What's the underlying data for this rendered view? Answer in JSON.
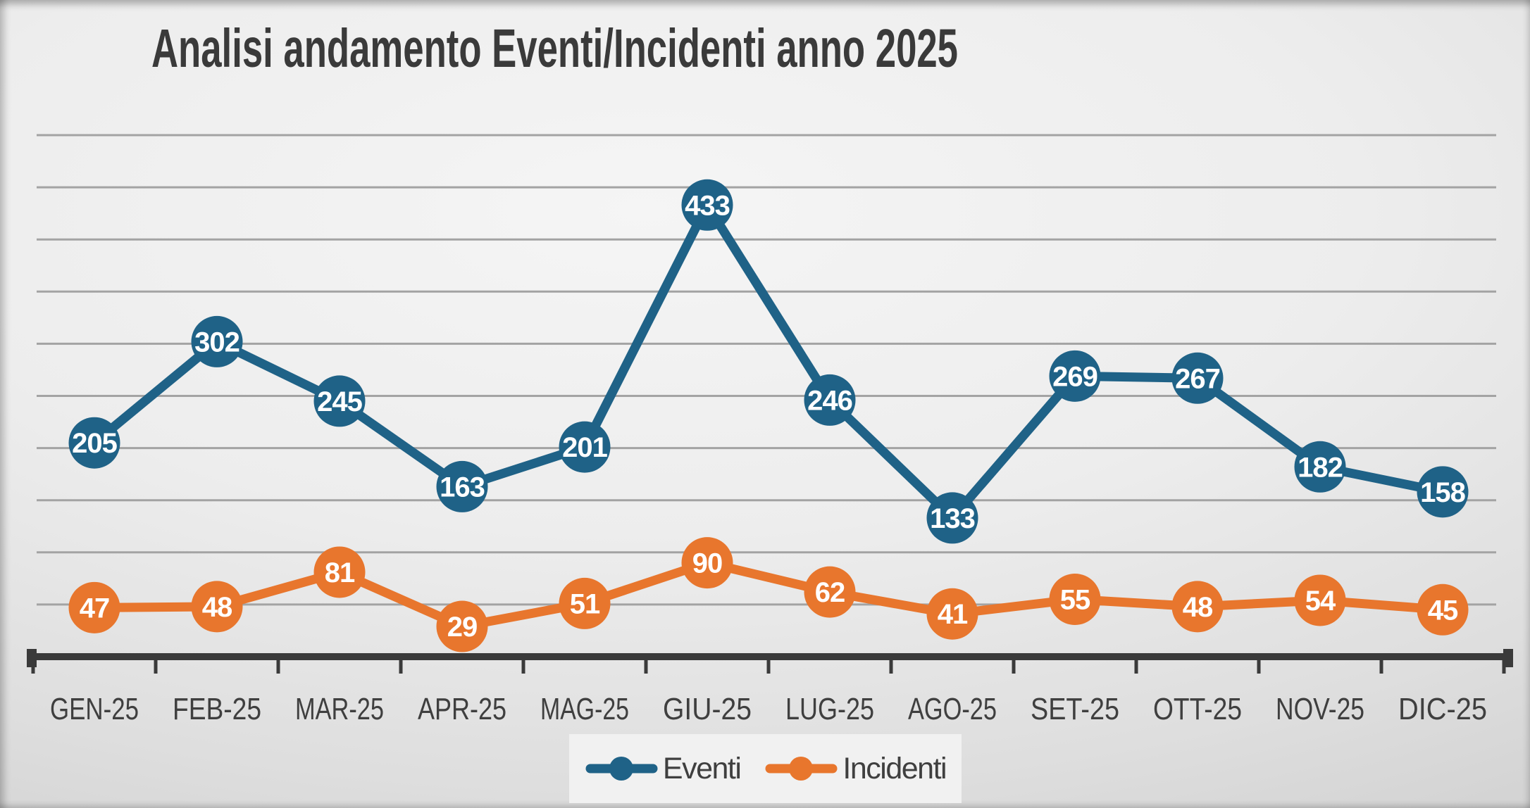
{
  "title": "Analisi andamento Eventi/Incidenti anno 2025",
  "chart_data": {
    "type": "line",
    "title": "Analisi andamento Eventi/Incidenti anno 2025",
    "categories": [
      "GEN-25",
      "FEB-25",
      "MAR-25",
      "APR-25",
      "MAG-25",
      "GIU-25",
      "LUG-25",
      "AGO-25",
      "SET-25",
      "OTT-25",
      "NOV-25",
      "DIC-25"
    ],
    "series": [
      {
        "name": "Eventi",
        "color": "#1F6287",
        "values": [
          205,
          302,
          245,
          163,
          201,
          433,
          246,
          133,
          269,
          267,
          182,
          158
        ]
      },
      {
        "name": "Incidenti",
        "color": "#E8762D",
        "values": [
          47,
          48,
          81,
          29,
          51,
          90,
          62,
          41,
          55,
          48,
          54,
          45
        ]
      }
    ],
    "ylim": [
      0,
      500
    ],
    "grid_step": 50,
    "grid": true,
    "y_axis_labels_visible": false,
    "data_labels": "inside_markers",
    "legend_position": "bottom"
  },
  "colors": {
    "grid": "#A3A3A3",
    "axis": "#3A3A3A",
    "text": "#3F3F3F",
    "legend_background": "#F1F1F1"
  }
}
